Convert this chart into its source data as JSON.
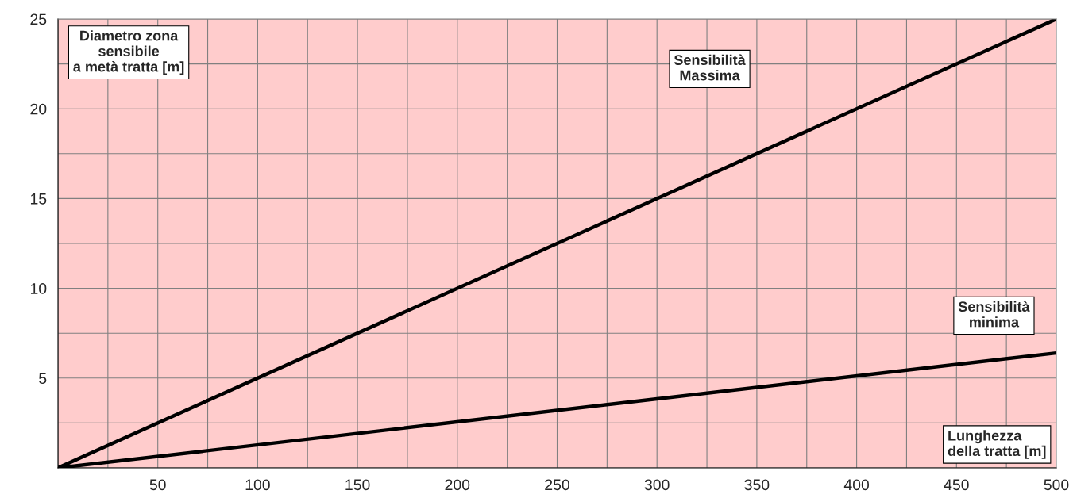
{
  "chart_data": {
    "type": "line",
    "xlabel": "Lunghezza\ndella tratta [m]",
    "ylabel": "Diametro zona\nsensibile\na metà tratta [m]",
    "x": [
      0,
      500
    ],
    "series": [
      {
        "name": "Sensibilità\nMassima",
        "color": "#000000",
        "values": [
          0,
          25
        ]
      },
      {
        "name": "Sensibilità\nminima",
        "color": "#000000",
        "values": [
          0,
          6.4
        ]
      }
    ],
    "xlim": [
      0,
      500
    ],
    "ylim": [
      0,
      25
    ],
    "xticks": [
      {
        "value": 0,
        "label": null
      },
      {
        "value": 25,
        "label": null
      },
      50,
      {
        "value": 75,
        "label": null
      },
      100,
      {
        "value": 125,
        "label": null
      },
      150,
      {
        "value": 175,
        "label": null
      },
      200,
      {
        "value": 225,
        "label": null
      },
      250,
      {
        "value": 275,
        "label": null
      },
      300,
      {
        "value": 325,
        "label": null
      },
      350,
      {
        "value": 375,
        "label": null
      },
      400,
      {
        "value": 425,
        "label": null
      },
      450,
      {
        "value": 475,
        "label": null
      },
      500
    ],
    "yticks": [
      {
        "value": 0,
        "label": null
      },
      {
        "value": 2.5,
        "label": null
      },
      5,
      {
        "value": 7.5,
        "label": null
      },
      10,
      {
        "value": 12.5,
        "label": null
      },
      15,
      {
        "value": 17.5,
        "label": null
      },
      20,
      {
        "value": 22.5,
        "label": null
      },
      25
    ],
    "grid": true,
    "marker": "none",
    "line_style": "solid",
    "legend": false
  }
}
